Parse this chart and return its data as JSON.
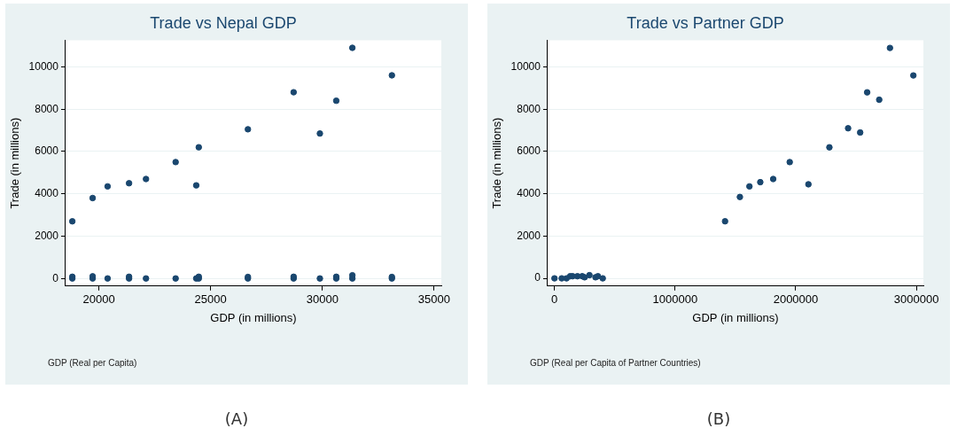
{
  "chart_data": [
    {
      "type": "scatter",
      "title": "Trade vs Nepal GDP",
      "xlabel": "GDP (in millions)",
      "ylabel": "Trade (in millions)",
      "annotations": [
        "GDP (Real per Capita)",
        "(A)"
      ],
      "x": [
        18813,
        19722,
        20392,
        21351,
        22109,
        23435,
        24357,
        24470,
        26668,
        28714,
        29889,
        30621,
        31341,
        33109,
        18813,
        18813,
        19722,
        19722,
        20392,
        21351,
        21351,
        22109,
        23435,
        24357,
        24470,
        24470,
        26668,
        26668,
        28714,
        28714,
        29889,
        30621,
        30621,
        31341,
        31341,
        33109,
        33109
      ],
      "values": [
        2700,
        3800,
        4350,
        4500,
        4700,
        5500,
        4400,
        6200,
        7050,
        8800,
        6850,
        8400,
        10900,
        9600,
        0,
        80,
        0,
        100,
        0,
        0,
        80,
        0,
        0,
        0,
        0,
        80,
        0,
        70,
        0,
        80,
        0,
        0,
        80,
        0,
        150,
        0,
        70
      ],
      "color": "#1a476f",
      "xlim": [
        18510,
        35320
      ],
      "xticks": [
        20000,
        25000,
        30000,
        35000
      ],
      "ylim": [
        -360,
        11250
      ],
      "yticks": [
        0,
        2000,
        4000,
        6000,
        8000,
        10000
      ],
      "grid": "y",
      "marker": "circle",
      "legend": false
    },
    {
      "type": "scatter",
      "title": "Trade vs Partner GDP",
      "xlabel": "GDP (in millions)",
      "ylabel": "Trade (in millions)",
      "annotations": [
        "GDP (Real per Capita of Partner Countries)",
        "(B)"
      ],
      "x": [
        1414000,
        1537000,
        1616000,
        1706000,
        1813000,
        1950000,
        2105000,
        2279000,
        2434000,
        2534000,
        2592000,
        2692000,
        2781000,
        2975000,
        0,
        60000,
        100000,
        130000,
        150000,
        190000,
        230000,
        250000,
        290000,
        340000,
        360000,
        400000
      ],
      "values": [
        2700,
        3850,
        4350,
        4550,
        4700,
        5500,
        4450,
        6200,
        7100,
        6900,
        8800,
        8450,
        10900,
        9600,
        0,
        0,
        0,
        100,
        100,
        100,
        100,
        50,
        150,
        50,
        100,
        0
      ],
      "color": "#1a476f",
      "xlim": [
        -57000,
        3058000
      ],
      "xticks": [
        0,
        1000000,
        2000000,
        3000000
      ],
      "ylim": [
        -365,
        11257
      ],
      "yticks": [
        0,
        2000,
        4000,
        6000,
        8000,
        10000
      ],
      "grid": "y",
      "marker": "circle",
      "legend": false
    }
  ]
}
